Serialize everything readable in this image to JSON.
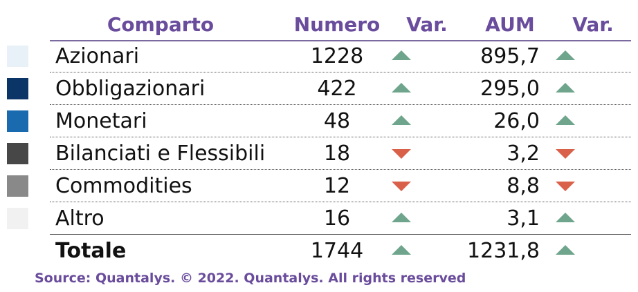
{
  "header": {
    "comparto": "Comparto",
    "numero": "Numero",
    "var1": "Var.",
    "aum": "AUM",
    "var2": "Var."
  },
  "rows": [
    {
      "label": "Azionari",
      "numero": "1228",
      "numero_trend": "up",
      "aum": "895,7",
      "aum_trend": "up",
      "swatch_color": "#e8f1f7"
    },
    {
      "label": "Obbligazionari",
      "numero": "422",
      "numero_trend": "up",
      "aum": "295,0",
      "aum_trend": "up",
      "swatch_color": "#0b3566"
    },
    {
      "label": "Monetari",
      "numero": "48",
      "numero_trend": "up",
      "aum": "26,0",
      "aum_trend": "up",
      "swatch_color": "#1a6ab0"
    },
    {
      "label": "Bilanciati e Flessibili",
      "numero": "18",
      "numero_trend": "down",
      "aum": "3,2",
      "aum_trend": "down",
      "swatch_color": "#474747"
    },
    {
      "label": "Commodities",
      "numero": "12",
      "numero_trend": "down",
      "aum": "8,8",
      "aum_trend": "down",
      "swatch_color": "#898989"
    },
    {
      "label": "Altro",
      "numero": "16",
      "numero_trend": "up",
      "aum": "3,1",
      "aum_trend": "up",
      "swatch_color": "#f1f1f1"
    }
  ],
  "total": {
    "label": "Totale",
    "numero": "1744",
    "numero_trend": "up",
    "aum": "1231,8",
    "aum_trend": "up"
  },
  "source": "Source: Quantalys. © 2022. Quantalys. All rights reserved",
  "colors": {
    "header_text": "#6a4c9c",
    "up_arrow": "#6fa58c",
    "down_arrow": "#d9614a"
  }
}
